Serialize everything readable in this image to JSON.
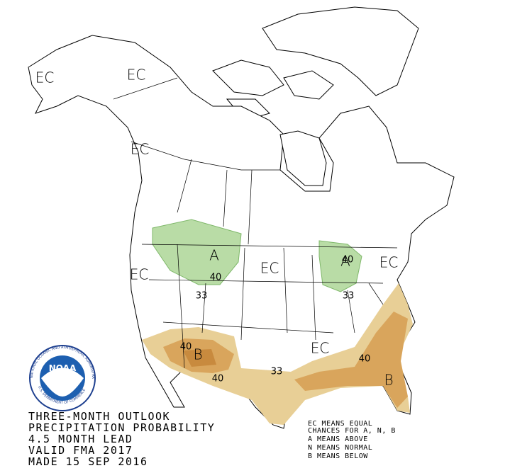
{
  "map": {
    "labels": [
      "EC",
      "EC",
      "EC",
      "EC",
      "EC",
      "EC",
      "EC",
      "A",
      "A",
      "B",
      "B",
      "40",
      "40",
      "40",
      "40",
      "40",
      "33",
      "33",
      "33"
    ],
    "legend": {
      "lines": [
        "THREE-MONTH OUTLOOK",
        "PRECIPITATION PROBABILITY",
        "4.5 MONTH LEAD",
        "VALID FMA 2017",
        "MADE 15 SEP 2016"
      ]
    },
    "key": {
      "lines": [
        "EC MEANS EQUAL",
        "CHANCES FOR A, N, B",
        "A MEANS ABOVE",
        "N MEANS NORMAL",
        "B MEANS BELOW"
      ]
    },
    "logo": {
      "name": "NOAA",
      "agency": "NATIONAL OCEANIC AND ATMOSPHERIC ADMINISTRATION",
      "department": "U.S. DEPARTMENT OF COMMERCE"
    }
  }
}
